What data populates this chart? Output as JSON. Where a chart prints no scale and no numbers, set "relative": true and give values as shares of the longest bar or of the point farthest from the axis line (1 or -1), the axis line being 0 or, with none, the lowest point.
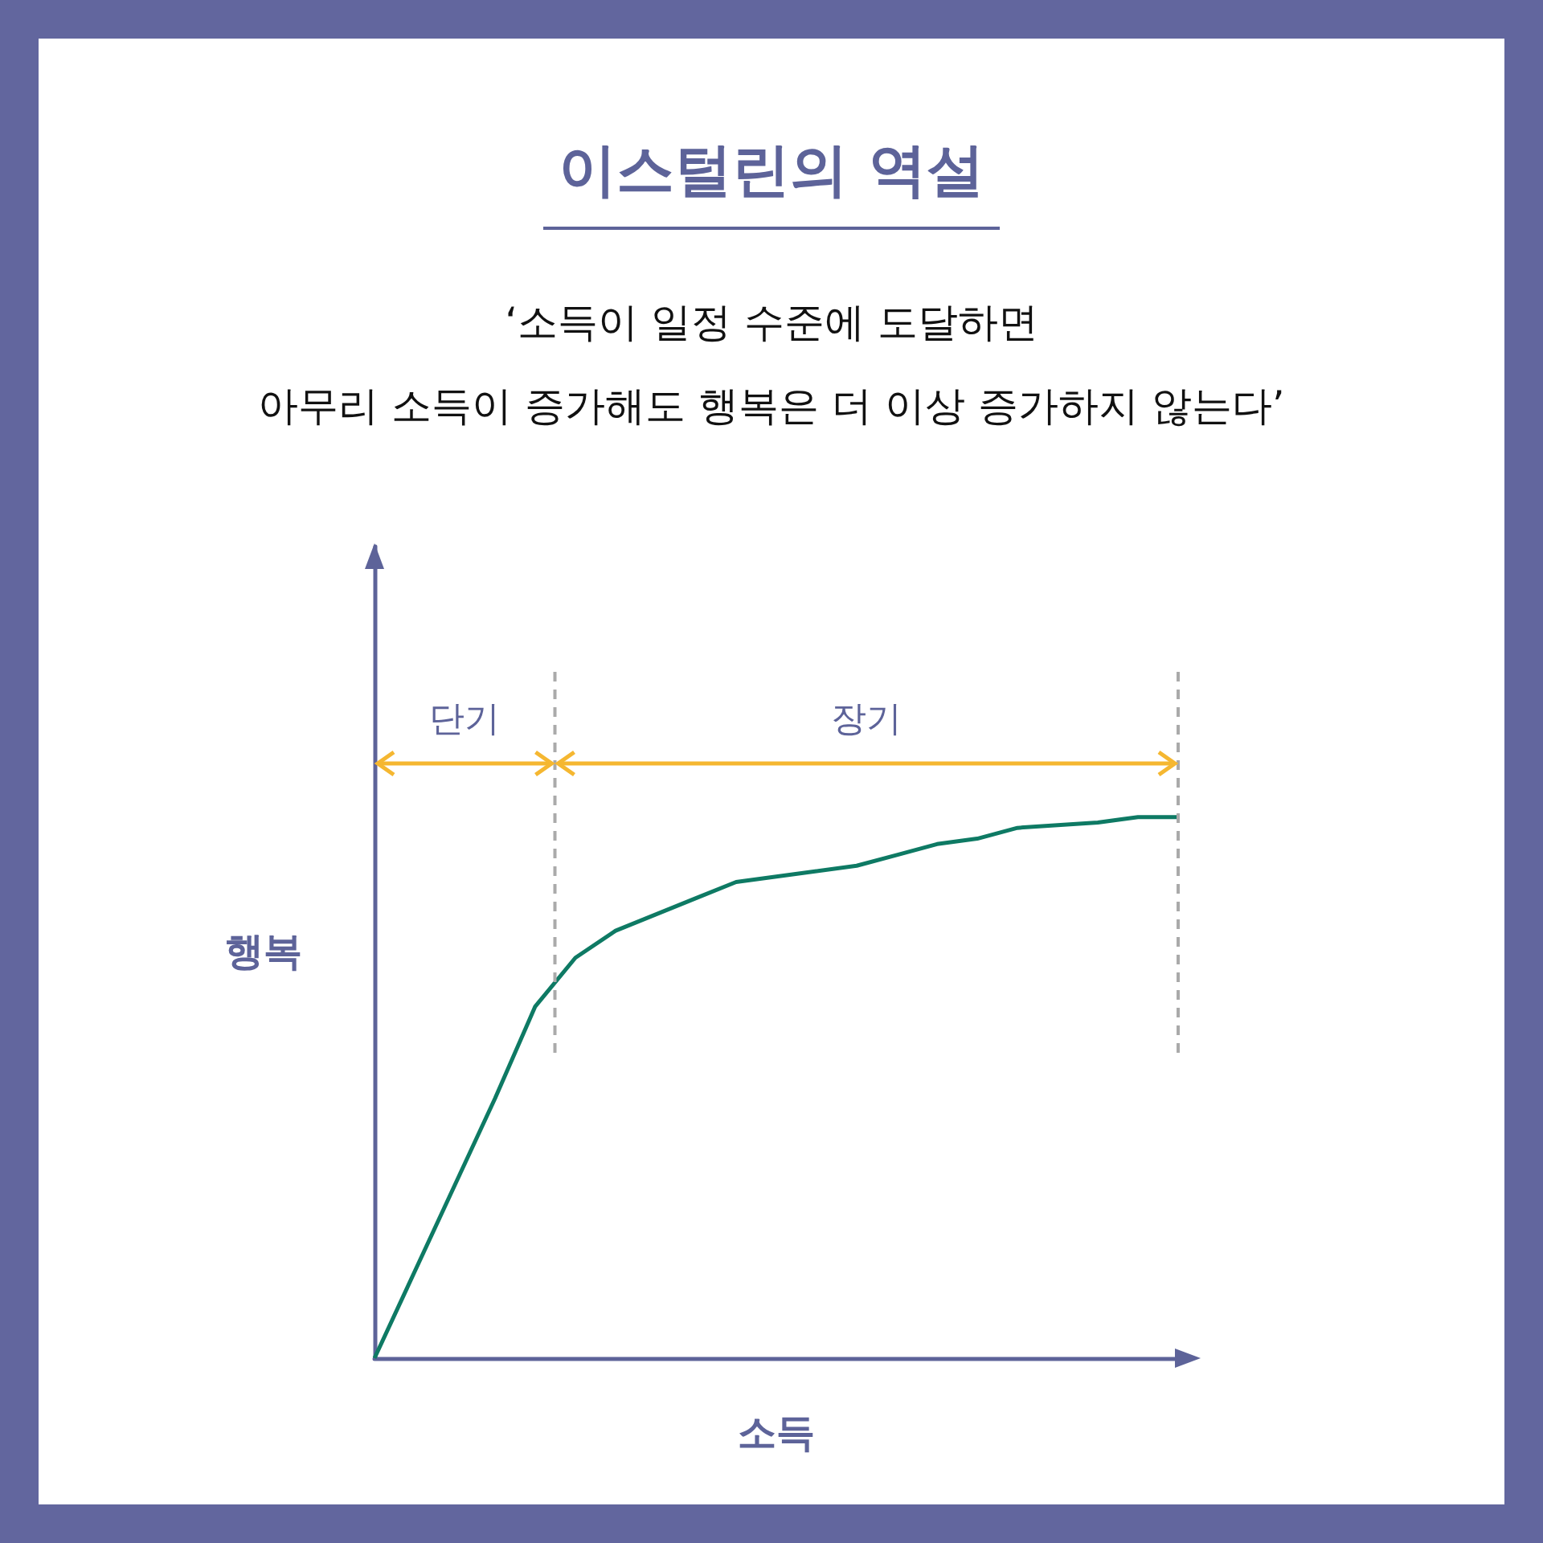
{
  "chart_data": {
    "type": "line",
    "title": "이스털린의 역설",
    "subtitle": "‘소득이 일정 수준에 도달하면\n아무리 소득이 증가해도 행복은 더 이상 증가하지 않는다’",
    "xlabel": "소득",
    "ylabel": "행복",
    "relative": true,
    "marker": "none",
    "line_style": "solid",
    "grid": false,
    "categories": [
      null,
      null,
      null,
      null,
      null,
      null,
      null,
      null,
      null,
      null,
      null,
      null,
      null,
      null,
      null,
      null,
      null,
      null,
      null,
      null,
      null
    ],
    "series": [
      {
        "color": "#0e7a64",
        "values": [
          0,
          0.16,
          0.32,
          0.48,
          0.65,
          0.74,
          0.79,
          0.82,
          0.85,
          0.88,
          0.89,
          0.9,
          0.91,
          0.93,
          0.95,
          0.96,
          0.98,
          0.985,
          0.99,
          1,
          1
        ]
      }
    ],
    "annotations": [
      "단기",
      "장기"
    ]
  }
}
